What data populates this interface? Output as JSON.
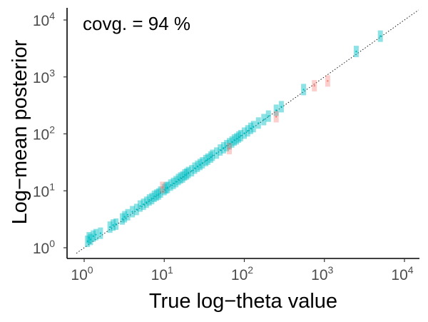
{
  "chart_data": {
    "type": "scatter",
    "title": "",
    "xlabel": "True log−theta value",
    "ylabel": "Log−mean posterior",
    "xscale": "log10",
    "yscale": "log10",
    "xlim": [
      0.8,
      15000
    ],
    "ylim": [
      0.8,
      15000
    ],
    "x_ticks": [
      {
        "base": "10",
        "exp": "0",
        "value": 1
      },
      {
        "base": "10",
        "exp": "1",
        "value": 10
      },
      {
        "base": "10",
        "exp": "2",
        "value": 100
      },
      {
        "base": "10",
        "exp": "3",
        "value": 1000
      },
      {
        "base": "10",
        "exp": "4",
        "value": 10000
      }
    ],
    "y_ticks": [
      {
        "base": "10",
        "exp": "0",
        "value": 1
      },
      {
        "base": "10",
        "exp": "1",
        "value": 10
      },
      {
        "base": "10",
        "exp": "2",
        "value": 100
      },
      {
        "base": "10",
        "exp": "3",
        "value": 1000
      },
      {
        "base": "10",
        "exp": "4",
        "value": 10000
      }
    ],
    "annotation": "covg. = 94 %",
    "reference_line": "y = x (dotted)",
    "grid": false,
    "colors": {
      "covered": "#00BFC4",
      "not_covered": "#F8766D"
    },
    "series": [
      {
        "covered": true,
        "points": [
          [
            1.1,
            1.3
          ],
          [
            1.15,
            1.5
          ],
          [
            1.2,
            1.4
          ],
          [
            1.3,
            1.6
          ],
          [
            1.4,
            1.7
          ],
          [
            1.6,
            1.8
          ],
          [
            2.1,
            2.3
          ],
          [
            2.3,
            2.5
          ],
          [
            2.5,
            2.6
          ],
          [
            3.0,
            3.2
          ],
          [
            3.2,
            3.5
          ],
          [
            3.5,
            3.8
          ],
          [
            4.0,
            4.3
          ],
          [
            4.5,
            4.7
          ],
          [
            5.0,
            5.4
          ],
          [
            5.5,
            5.8
          ],
          [
            6.0,
            6.3
          ],
          [
            6.5,
            6.9
          ],
          [
            7.0,
            7.3
          ],
          [
            7.5,
            8.0
          ],
          [
            8.0,
            8.4
          ],
          [
            8.5,
            8.8
          ],
          [
            9.0,
            9.5
          ],
          [
            10.0,
            10.5
          ],
          [
            10.5,
            11.2
          ],
          [
            11.0,
            11.5
          ],
          [
            12.0,
            12.6
          ],
          [
            13.0,
            13.5
          ],
          [
            14.0,
            14.5
          ],
          [
            15.0,
            15.8
          ],
          [
            16.0,
            16.8
          ],
          [
            17.0,
            17.5
          ],
          [
            18.0,
            19.0
          ],
          [
            19.0,
            19.8
          ],
          [
            20.0,
            21.0
          ],
          [
            22.0,
            22.5
          ],
          [
            24.0,
            25.0
          ],
          [
            26.0,
            27.0
          ],
          [
            28.0,
            29.0
          ],
          [
            30.0,
            31.0
          ],
          [
            33.0,
            34.0
          ],
          [
            35.0,
            36.0
          ],
          [
            38.0,
            39.0
          ],
          [
            40.0,
            42.0
          ],
          [
            45.0,
            46.0
          ],
          [
            50.0,
            52.0
          ],
          [
            55.0,
            57.0
          ],
          [
            60.0,
            62.0
          ],
          [
            65.0,
            67.0
          ],
          [
            70.0,
            72.0
          ],
          [
            75.0,
            78.0
          ],
          [
            80.0,
            82.0
          ],
          [
            85.0,
            88.0
          ],
          [
            90.0,
            93.0
          ],
          [
            100.0,
            103.0
          ],
          [
            110.0,
            113.0
          ],
          [
            120.0,
            125.0
          ],
          [
            130.0,
            134.0
          ],
          [
            150.0,
            155.0
          ],
          [
            175.0,
            178.0
          ],
          [
            200.0,
            205.0
          ],
          [
            250.0,
            260.0
          ],
          [
            290.0,
            300.0
          ],
          [
            550.0,
            600.0
          ],
          [
            2500.0,
            2800.0
          ],
          [
            5000.0,
            5200.0
          ]
        ]
      },
      {
        "covered": false,
        "points": [
          [
            9.5,
            11.5
          ],
          [
            65.0,
            55.0
          ],
          [
            250.0,
            200.0
          ],
          [
            750.0,
            700.0
          ],
          [
            1100.0,
            850.0
          ]
        ]
      }
    ]
  }
}
